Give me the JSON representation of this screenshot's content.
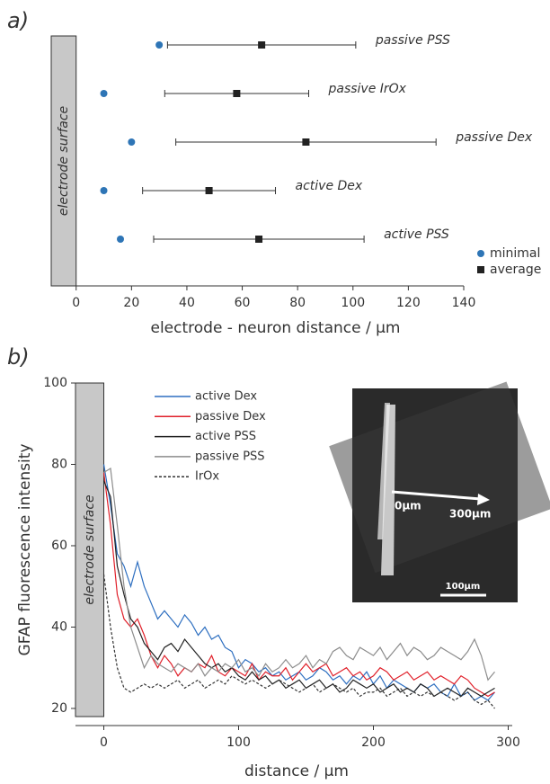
{
  "chart_data": [
    {
      "type": "dot_errorbar",
      "panel_label": "a)",
      "categories": [
        "passive PSS",
        "passive IrOx",
        "passive Dex",
        "active Dex",
        "active PSS"
      ],
      "series": [
        {
          "name": "minimal",
          "color": "#2e75b6",
          "values": [
            30,
            10,
            20,
            10,
            16
          ]
        },
        {
          "name": "average",
          "color": "#222222",
          "values": [
            67,
            58,
            83,
            48,
            66
          ],
          "errors": [
            34,
            26,
            47,
            24,
            38
          ]
        }
      ],
      "xlabel": "electrode - neuron distance / µm",
      "xlim": [
        -9,
        140
      ],
      "xticks": [
        0,
        20,
        40,
        60,
        80,
        100,
        120,
        140
      ],
      "annotation": "electrode surface",
      "legend": "lower right"
    },
    {
      "type": "line",
      "panel_label": "b)",
      "x": [
        0,
        5,
        10,
        15,
        20,
        25,
        30,
        35,
        40,
        45,
        50,
        55,
        60,
        65,
        70,
        75,
        80,
        85,
        90,
        95,
        100,
        105,
        110,
        115,
        120,
        125,
        130,
        135,
        140,
        145,
        150,
        155,
        160,
        165,
        170,
        175,
        180,
        185,
        190,
        195,
        200,
        205,
        210,
        215,
        220,
        225,
        230,
        235,
        240,
        245,
        250,
        255,
        260,
        265,
        270,
        275,
        280,
        285,
        290
      ],
      "series": [
        {
          "name": "active Dex",
          "color": "#2e6fc0",
          "dash": false,
          "values": [
            80,
            70,
            58,
            55,
            50,
            56,
            50,
            46,
            42,
            44,
            42,
            40,
            43,
            41,
            38,
            40,
            37,
            38,
            35,
            34,
            30,
            32,
            31,
            29,
            30,
            28,
            29,
            27,
            28,
            29,
            27,
            28,
            30,
            29,
            27,
            28,
            26,
            28,
            27,
            29,
            26,
            28,
            25,
            27,
            26,
            25,
            24,
            26,
            25,
            26,
            24,
            23,
            26,
            23,
            24,
            22,
            23,
            22,
            24
          ]
        },
        {
          "name": "passive Dex",
          "color": "#e0202a",
          "dash": false,
          "values": [
            78,
            65,
            48,
            42,
            40,
            42,
            38,
            33,
            30,
            33,
            31,
            28,
            30,
            29,
            31,
            30,
            33,
            29,
            28,
            30,
            29,
            28,
            31,
            27,
            29,
            28,
            28,
            30,
            27,
            29,
            31,
            29,
            30,
            31,
            28,
            29,
            30,
            28,
            29,
            27,
            28,
            30,
            29,
            27,
            28,
            29,
            27,
            28,
            29,
            27,
            28,
            27,
            26,
            28,
            27,
            25,
            24,
            23,
            24
          ]
        },
        {
          "name": "active PSS",
          "color": "#222222",
          "dash": false,
          "values": [
            76,
            72,
            55,
            48,
            42,
            40,
            36,
            34,
            32,
            35,
            36,
            34,
            37,
            35,
            33,
            31,
            30,
            31,
            29,
            30,
            28,
            27,
            29,
            27,
            28,
            26,
            27,
            25,
            26,
            27,
            25,
            26,
            27,
            25,
            26,
            24,
            25,
            27,
            26,
            25,
            26,
            24,
            25,
            26,
            24,
            25,
            24,
            26,
            25,
            23,
            24,
            25,
            24,
            23,
            25,
            24,
            23,
            24,
            25
          ]
        },
        {
          "name": "passive PSS",
          "color": "#8c8c8c",
          "dash": false,
          "values": [
            78,
            79,
            65,
            50,
            40,
            35,
            30,
            33,
            31,
            30,
            29,
            31,
            30,
            29,
            31,
            28,
            30,
            29,
            31,
            30,
            32,
            29,
            30,
            28,
            31,
            29,
            30,
            32,
            30,
            31,
            33,
            30,
            32,
            31,
            34,
            35,
            33,
            32,
            35,
            34,
            33,
            35,
            32,
            34,
            36,
            33,
            35,
            34,
            32,
            33,
            35,
            34,
            33,
            32,
            34,
            37,
            33,
            27,
            29
          ]
        },
        {
          "name": "IrOx",
          "color": "#333333",
          "dash": true,
          "values": [
            53,
            40,
            30,
            25,
            24,
            25,
            26,
            25,
            26,
            25,
            26,
            27,
            25,
            26,
            27,
            25,
            26,
            27,
            26,
            28,
            27,
            26,
            27,
            26,
            25,
            26,
            27,
            26,
            25,
            24,
            25,
            26,
            24,
            25,
            26,
            25,
            24,
            25,
            23,
            24,
            24,
            25,
            23,
            24,
            25,
            23,
            24,
            23,
            24,
            23,
            24,
            23,
            22,
            23,
            24,
            22,
            21,
            22,
            20
          ]
        }
      ],
      "xlabel": "distance / µm",
      "ylabel": "GFAP fluorescence intensity",
      "xlim": [
        -21,
        303
      ],
      "ylim": [
        18,
        100
      ],
      "xticks": [
        0,
        100,
        200,
        300
      ],
      "yticks": [
        20,
        40,
        60,
        80,
        100
      ],
      "annotation": "electrode surface",
      "legend": "upper left",
      "inset_labels": [
        "0µm",
        "300µm",
        "100µm"
      ]
    }
  ]
}
